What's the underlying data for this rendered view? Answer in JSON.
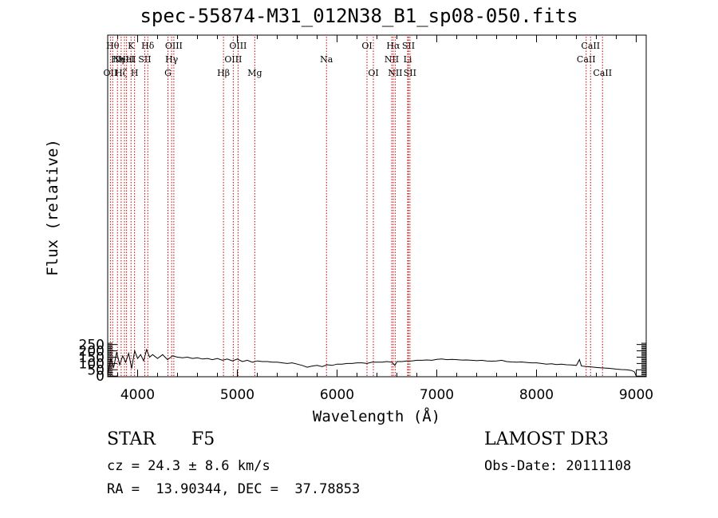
{
  "figure": {
    "title": "spec-55874-M31_012N38_B1_sp08-050.fits",
    "object_class": "STAR",
    "subclass": "F5",
    "survey": "LAMOST DR3",
    "redshift_text": "cz = 24.3 ± 8.6 km/s",
    "obs_date_text": "Obs-Date: 20111108",
    "coords_text": "RA =  13.90344, DEC =  37.78853"
  },
  "colors": {
    "spectrum": "#000000",
    "line_marker": "#cc0000",
    "axes": "#000000"
  },
  "chart_data": {
    "type": "line",
    "title": "spec-55874-M31_012N38_B1_sp08-050.fits",
    "xlabel": "Wavelength (Å)",
    "ylabel": "Flux (relative)",
    "xlim": [
      3700,
      9100
    ],
    "ylim": [
      -5,
      2700
    ],
    "x_ticks": [
      4000,
      5000,
      6000,
      7000,
      8000,
      9000
    ],
    "y_ticks": [
      0,
      50,
      100,
      150,
      200,
      250
    ],
    "y_tick_labels": [
      "0",
      "50",
      "100",
      "150",
      "200",
      "250"
    ],
    "grid": false,
    "series": [
      {
        "name": "flux",
        "x": [
          3700,
          3730,
          3760,
          3790,
          3820,
          3850,
          3880,
          3910,
          3940,
          3970,
          4000,
          4030,
          4060,
          4090,
          4120,
          4150,
          4200,
          4250,
          4300,
          4350,
          4400,
          4450,
          4500,
          4550,
          4600,
          4650,
          4700,
          4750,
          4800,
          4850,
          4900,
          4950,
          5000,
          5050,
          5100,
          5150,
          5200,
          5250,
          5300,
          5350,
          5400,
          5450,
          5500,
          5550,
          5600,
          5650,
          5700,
          5750,
          5800,
          5850,
          5900,
          5950,
          6000,
          6050,
          6100,
          6150,
          6200,
          6250,
          6300,
          6350,
          6400,
          6450,
          6500,
          6550,
          6580,
          6600,
          6650,
          6700,
          6750,
          6800,
          6850,
          6900,
          6950,
          7000,
          7050,
          7100,
          7150,
          7200,
          7250,
          7300,
          7350,
          7400,
          7450,
          7500,
          7550,
          7600,
          7650,
          7700,
          7750,
          7800,
          7850,
          7900,
          7950,
          8000,
          8050,
          8100,
          8150,
          8200,
          8250,
          8300,
          8350,
          8400,
          8430,
          8450,
          8500,
          8550,
          8600,
          8650,
          8700,
          8750,
          8800,
          8850,
          8900,
          8950,
          8980,
          9000
        ],
        "y": [
          5,
          140,
          70,
          190,
          90,
          160,
          110,
          180,
          60,
          200,
          140,
          170,
          120,
          210,
          150,
          170,
          140,
          170,
          130,
          160,
          150,
          145,
          150,
          140,
          145,
          135,
          140,
          130,
          140,
          125,
          135,
          120,
          135,
          115,
          125,
          110,
          120,
          115,
          115,
          110,
          110,
          105,
          100,
          105,
          95,
          85,
          70,
          80,
          85,
          75,
          90,
          85,
          95,
          95,
          100,
          100,
          105,
          105,
          100,
          110,
          110,
          110,
          115,
          110,
          85,
          115,
          115,
          120,
          120,
          125,
          125,
          128,
          125,
          132,
          135,
          130,
          133,
          130,
          127,
          128,
          125,
          122,
          125,
          120,
          118,
          120,
          125,
          115,
          112,
          110,
          112,
          108,
          105,
          105,
          100,
          95,
          98,
          92,
          95,
          90,
          88,
          85,
          130,
          80,
          75,
          72,
          68,
          65,
          63,
          60,
          55,
          52,
          50,
          45,
          35,
          0
        ]
      }
    ],
    "line_markers": [
      {
        "wave": 3727,
        "label": "OII",
        "row": 3
      },
      {
        "wave": 3750,
        "label": "Hθ",
        "row": 1
      },
      {
        "wave": 3798,
        "label": "Hη",
        "row": 2
      },
      {
        "wave": 3835,
        "label": "Hζ",
        "row": 3
      },
      {
        "wave": 3868,
        "label": "NeIII",
        "row": 2
      },
      {
        "wave": 3889,
        "label": "HeI",
        "row": 2
      },
      {
        "wave": 3934,
        "label": "K",
        "row": 1
      },
      {
        "wave": 3969,
        "label": "H",
        "row": 3
      },
      {
        "wave": 4072,
        "label": "SII",
        "row": 2
      },
      {
        "wave": 4102,
        "label": "Hδ",
        "row": 1
      },
      {
        "wave": 4304,
        "label": "G",
        "row": 3
      },
      {
        "wave": 4341,
        "label": "Hγ",
        "row": 2
      },
      {
        "wave": 4363,
        "label": "OIII",
        "row": 1
      },
      {
        "wave": 4861,
        "label": "Hβ",
        "row": 3
      },
      {
        "wave": 4959,
        "label": "OIII",
        "row": 2
      },
      {
        "wave": 5007,
        "label": "OIII",
        "row": 1
      },
      {
        "wave": 5175,
        "label": "Mg",
        "row": 3
      },
      {
        "wave": 5894,
        "label": "Na",
        "row": 2
      },
      {
        "wave": 6300,
        "label": "OI",
        "row": 1
      },
      {
        "wave": 6364,
        "label": "OI",
        "row": 3
      },
      {
        "wave": 6548,
        "label": "NII",
        "row": 2
      },
      {
        "wave": 6563,
        "label": "Hα",
        "row": 1
      },
      {
        "wave": 6583,
        "label": "NII",
        "row": 3
      },
      {
        "wave": 6708,
        "label": "Li",
        "row": 2
      },
      {
        "wave": 6716,
        "label": "SII",
        "row": 1
      },
      {
        "wave": 6731,
        "label": "SII",
        "row": 3
      },
      {
        "wave": 8498,
        "label": "CaII",
        "row": 2
      },
      {
        "wave": 8542,
        "label": "CaII",
        "row": 1
      },
      {
        "wave": 8662,
        "label": "CaII",
        "row": 3
      }
    ]
  }
}
